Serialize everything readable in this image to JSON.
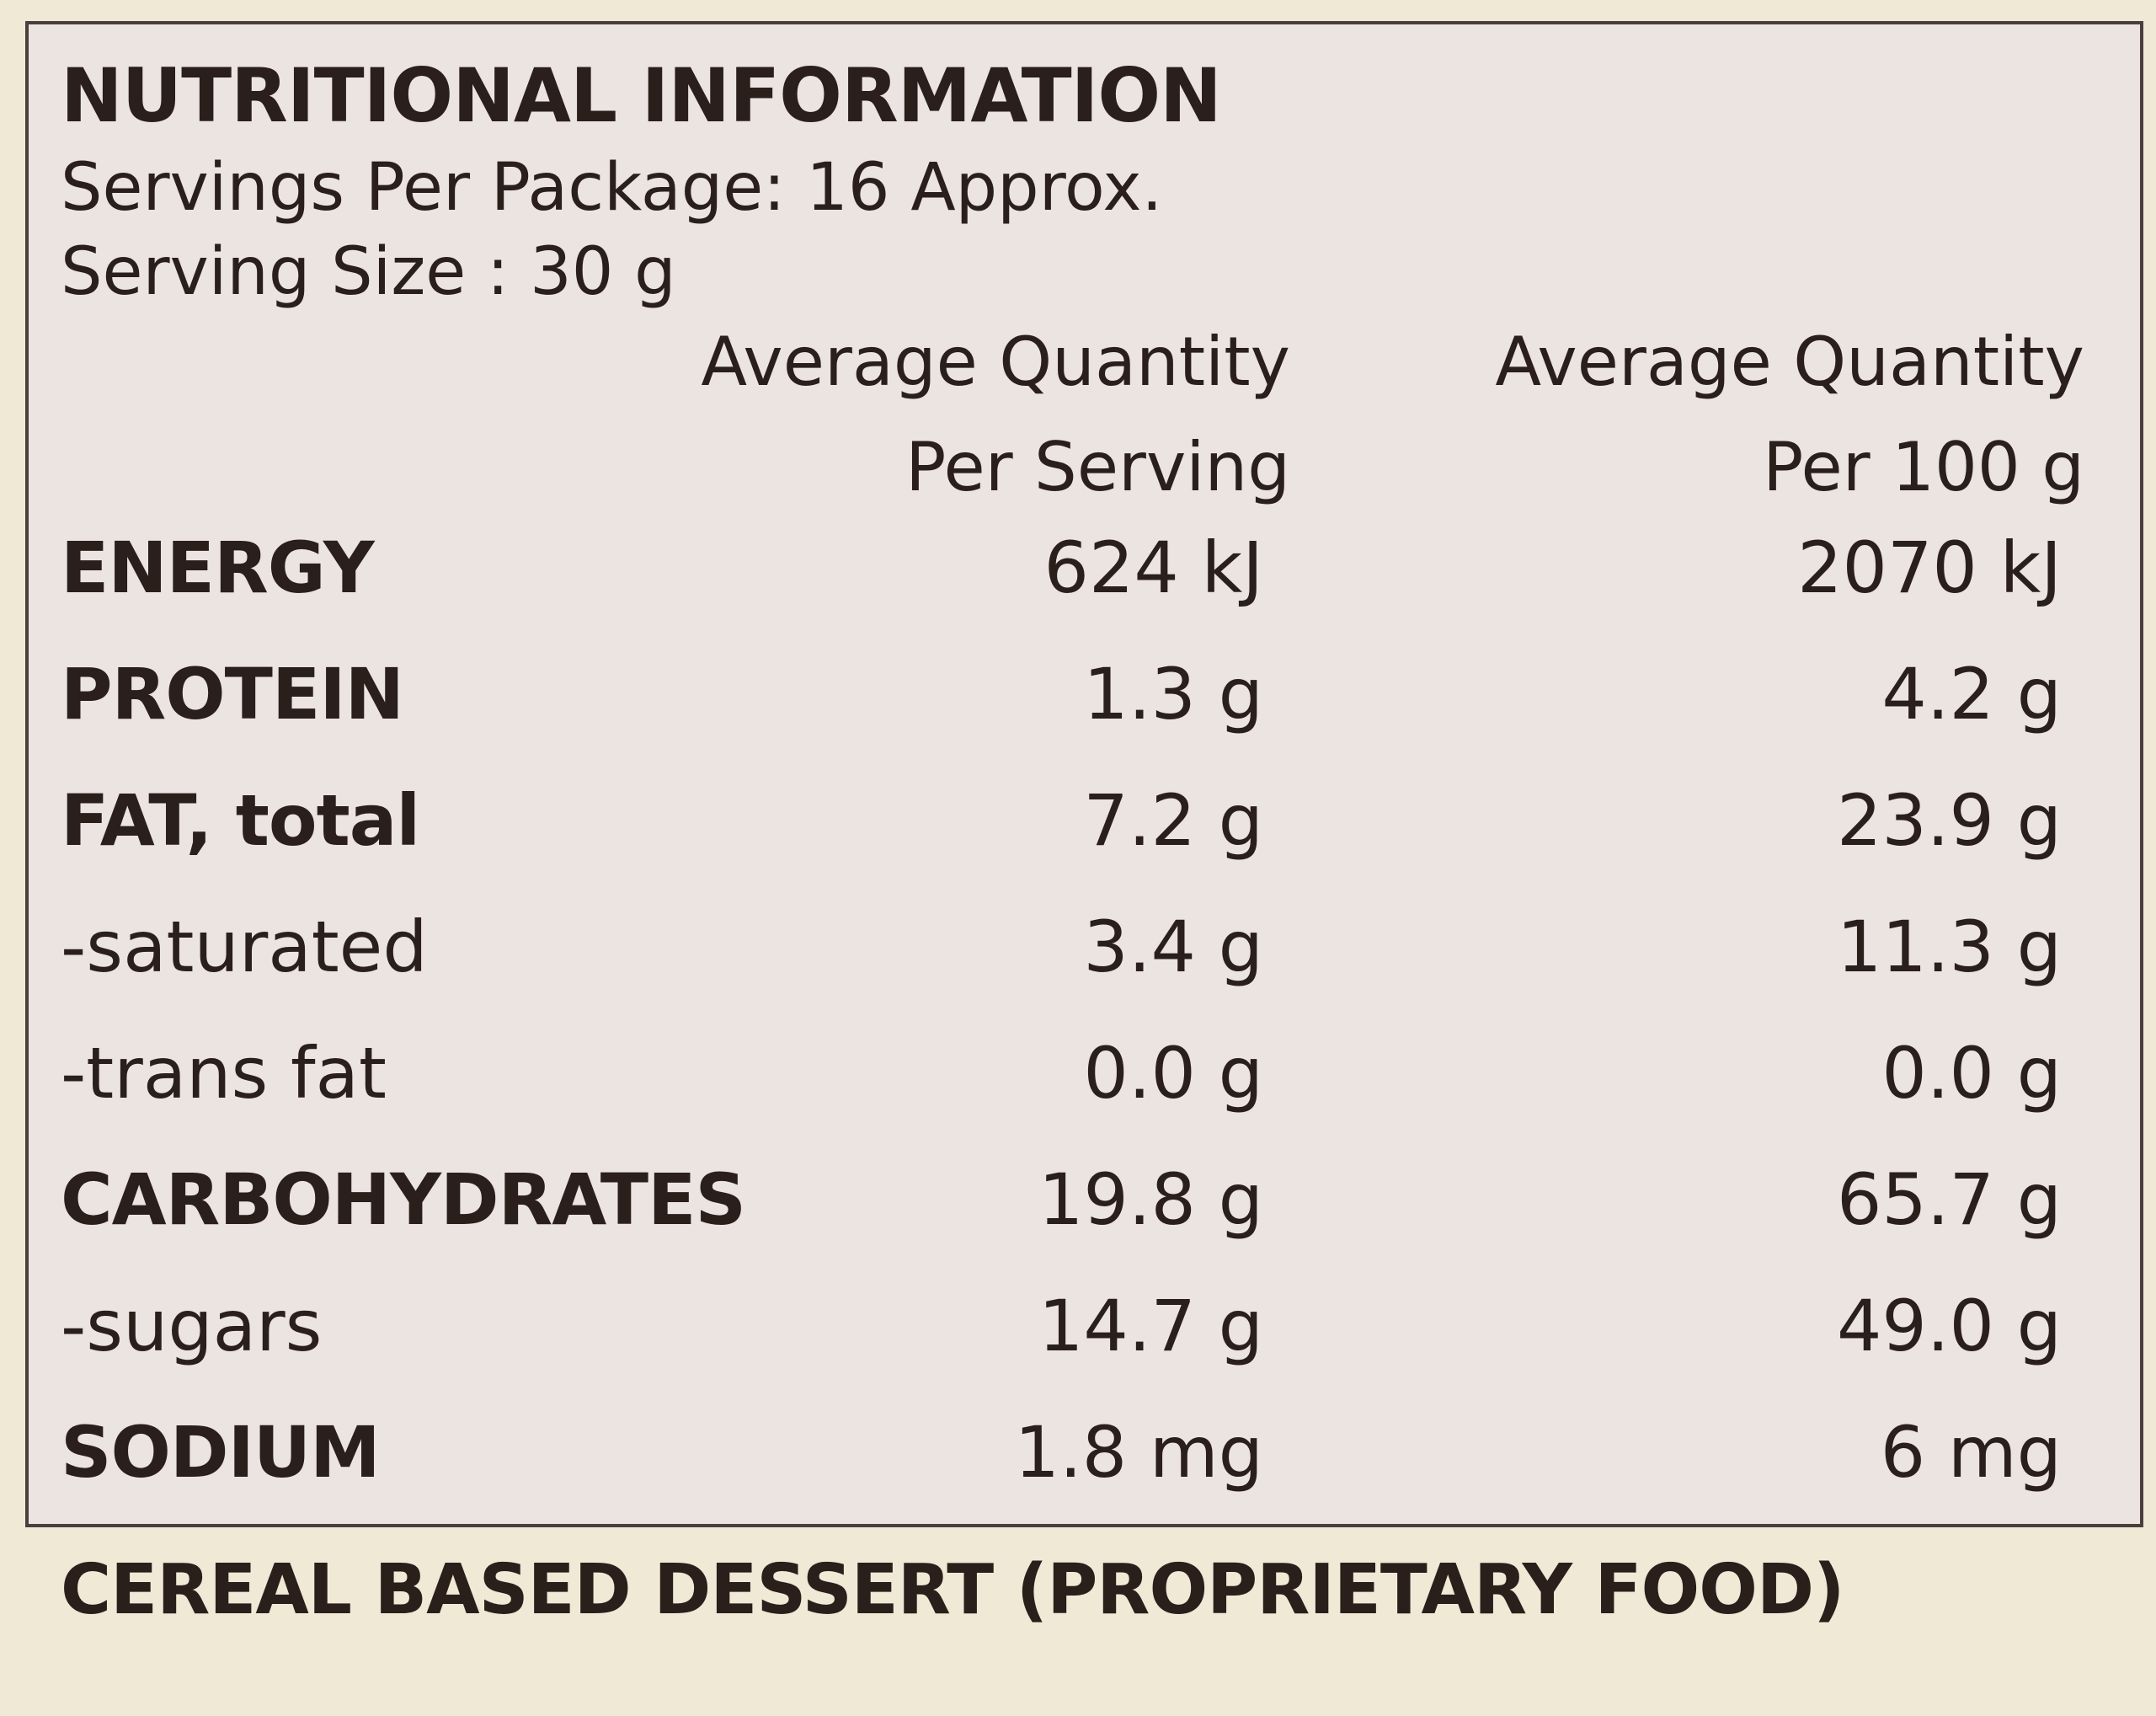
{
  "title": "NUTRITIONAL INFORMATION",
  "servings_per_package": "Servings Per Package: 16 Approx.",
  "serving_size": "Serving Size : 30 g",
  "columns": {
    "col1_line1": "Average Quantity",
    "col1_line2": "Per Serving",
    "col2_line1": "Average Quantity",
    "col2_line2": "Per 100 g"
  },
  "rows": [
    {
      "label": "ENERGY",
      "per_serving": "624 kJ",
      "per_100g": "2070 kJ",
      "bold": true
    },
    {
      "label": "PROTEIN",
      "per_serving": "1.3 g",
      "per_100g": "4.2 g",
      "bold": true
    },
    {
      "label": "FAT, total",
      "per_serving": "7.2 g",
      "per_100g": "23.9 g",
      "bold": true
    },
    {
      "label": "-saturated",
      "per_serving": "3.4 g",
      "per_100g": "11.3 g",
      "bold": false
    },
    {
      "label": "-trans fat",
      "per_serving": "0.0 g",
      "per_100g": "0.0 g",
      "bold": false
    },
    {
      "label": "CARBOHYDRATES",
      "per_serving": "19.8 g",
      "per_100g": "65.7 g",
      "bold": true
    },
    {
      "label": "-sugars",
      "per_serving": "14.7 g",
      "per_100g": "49.0 g",
      "bold": false
    },
    {
      "label": "SODIUM",
      "per_serving": "1.8 mg",
      "per_100g": "6 mg",
      "bold": true
    }
  ],
  "footer": "CEREAL BASED DESSERT (PROPRIETARY FOOD)",
  "colors": {
    "background": "#efe9d6",
    "panel": "#ebe4e0",
    "text": "#2a1f1b",
    "border": "#4a3f3c"
  }
}
